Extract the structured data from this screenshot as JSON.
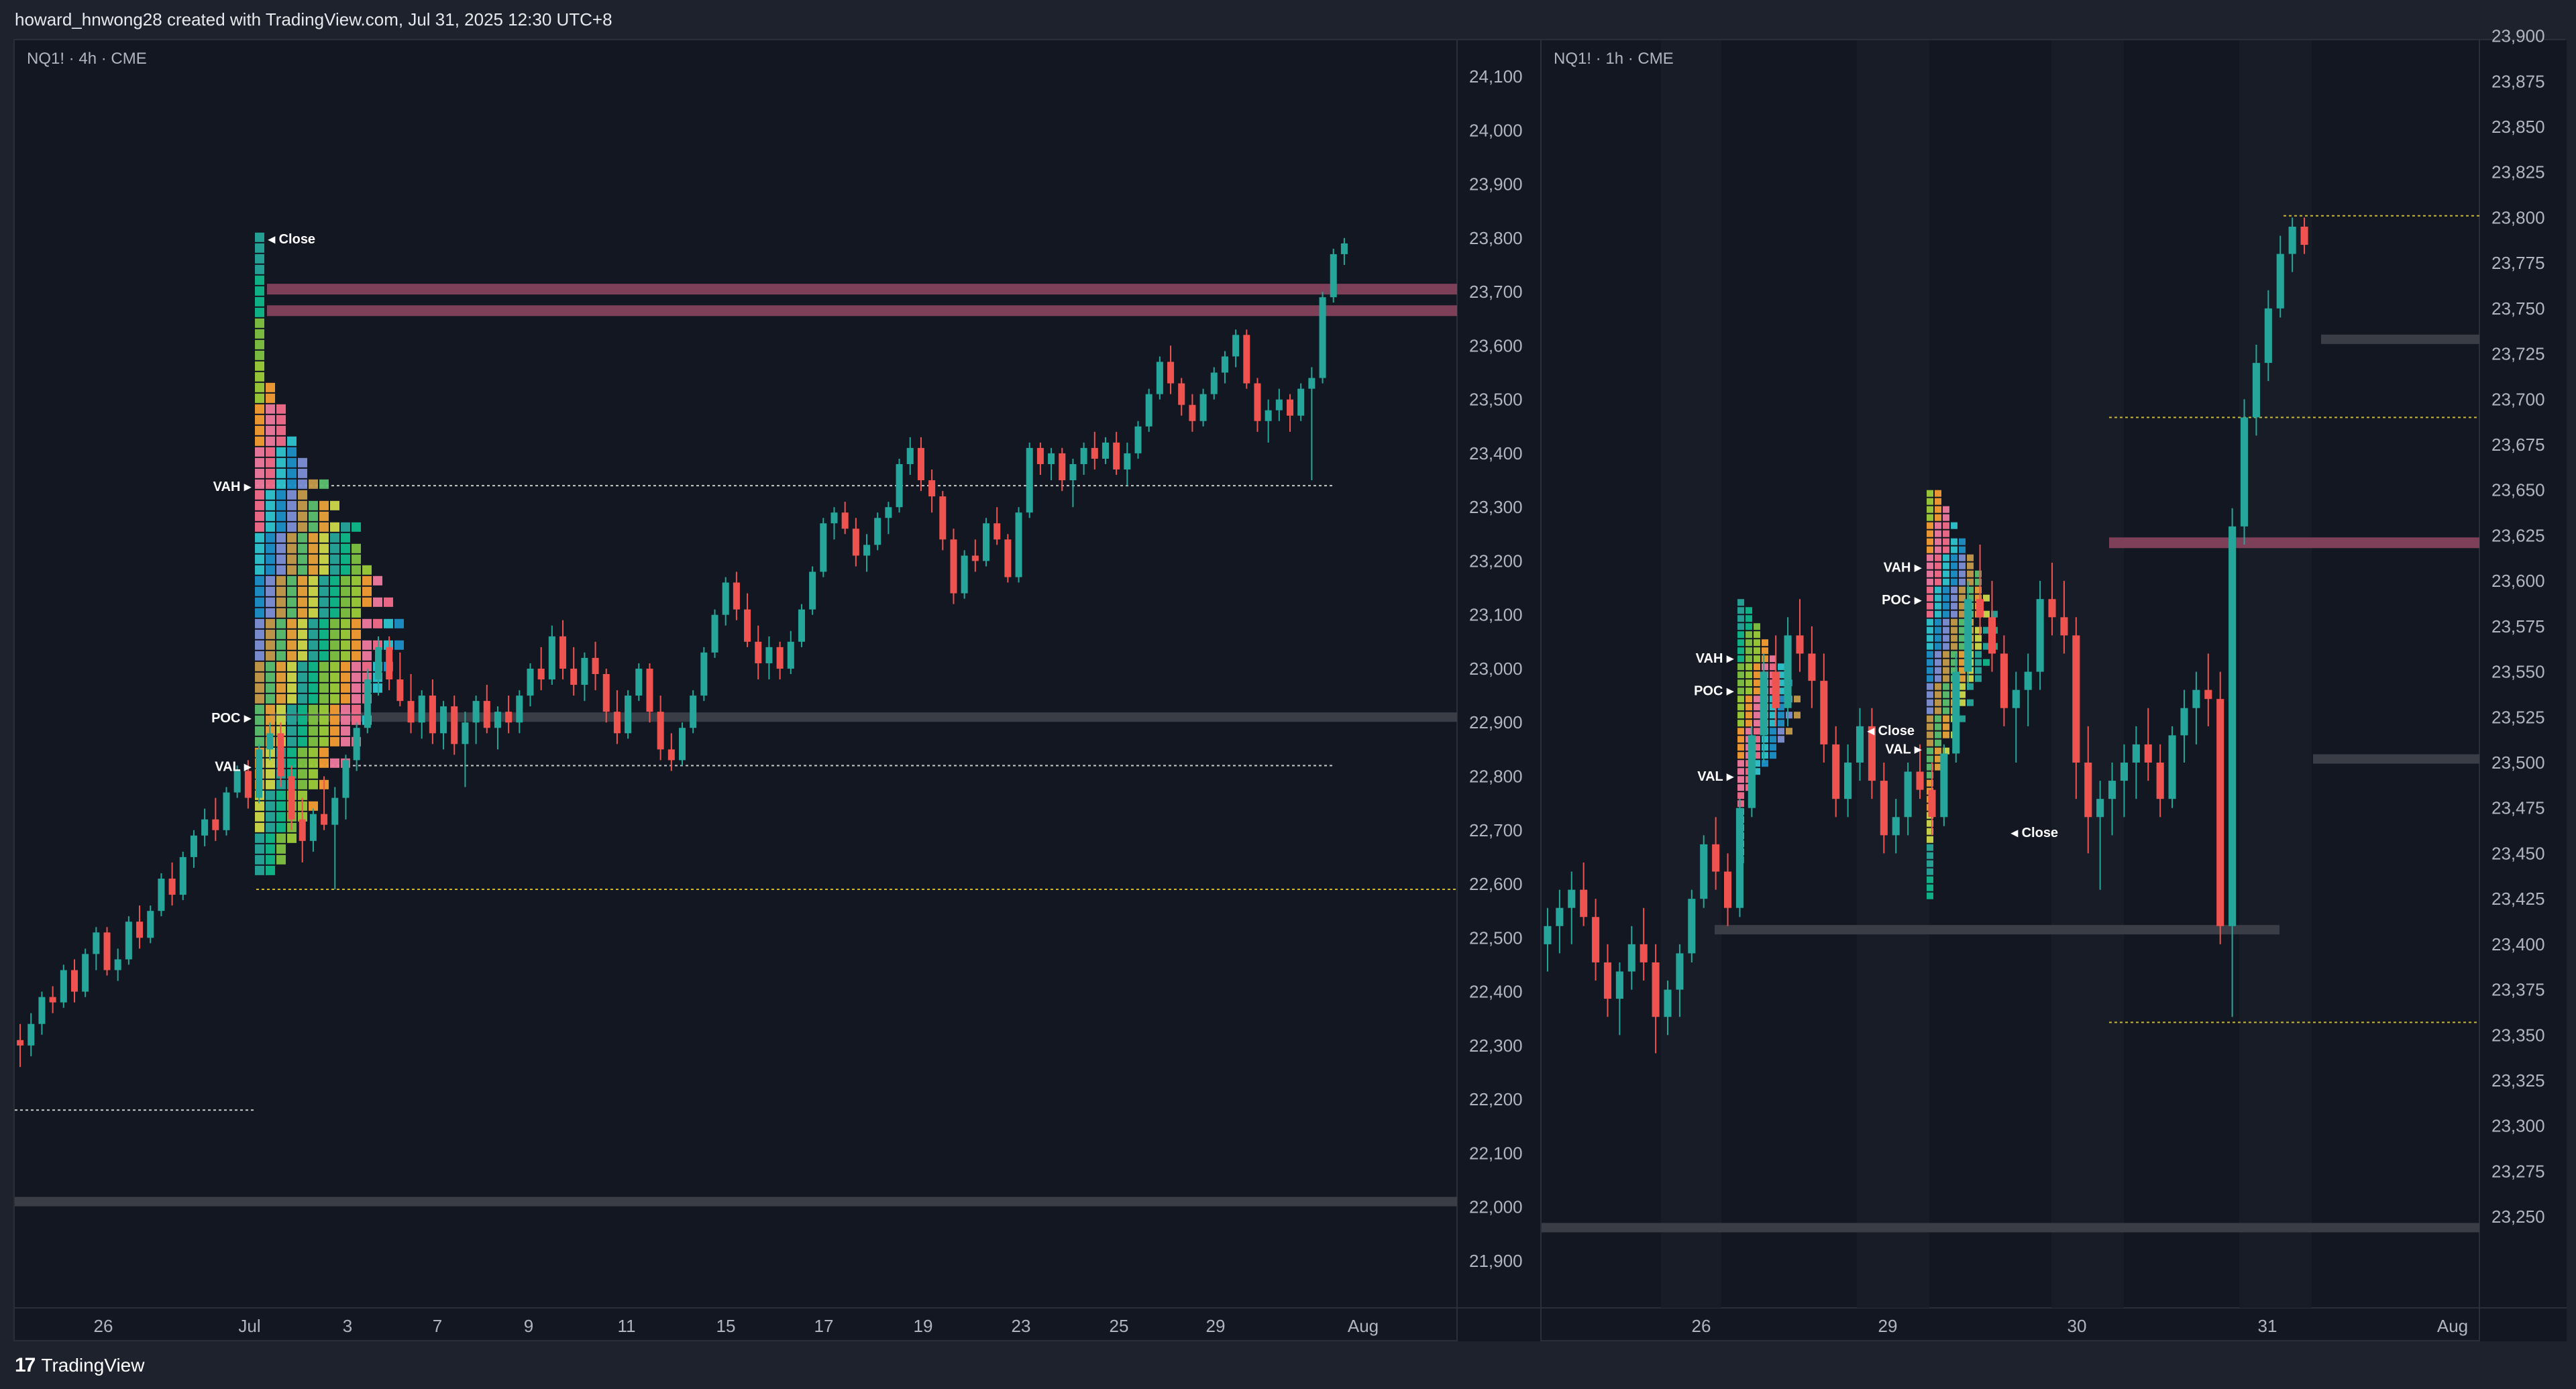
{
  "header": {
    "caption": "howard_hnwong28 created with TradingView.com, Jul 31, 2025 12:30 UTC+8"
  },
  "footer": {
    "brand": "TradingView",
    "brand_mark": "17"
  },
  "colors": {
    "background": "#131722",
    "up": "#26a69a",
    "down": "#ef5350",
    "level_band": "#7e3f58",
    "grey_band": "#3a3d45",
    "dotted": "#c9c9c9",
    "yellow_dotted": "#c8b53a"
  },
  "chart_data": [
    {
      "type": "candlestick",
      "symbol_label": "NQ1! · 4h · CME",
      "ylim": [
        21850,
        24130
      ],
      "y_ticks": [
        24100,
        24000,
        23900,
        23800,
        23700,
        23600,
        23500,
        23400,
        23300,
        23200,
        23100,
        23000,
        22900,
        22800,
        22700,
        22600,
        22500,
        22400,
        22300,
        22200,
        22100,
        22000,
        21900
      ],
      "x_tick_labels": [
        "26",
        "Jul",
        "3",
        "7",
        "9",
        "11",
        "15",
        "17",
        "19",
        "23",
        "25",
        "29",
        "Aug"
      ],
      "profile_labels": [
        "VAH",
        "POC",
        "VAL",
        "Close"
      ],
      "levels": {
        "vah": 23340,
        "poc": 22910,
        "val": 22820,
        "close_marker": 23800,
        "red_bands": [
          23705,
          23665
        ],
        "grey_bands": [
          22910,
          22010
        ],
        "dotted": [
          23340,
          22820,
          22180
        ],
        "yellow_dotted": [
          22590
        ]
      },
      "candles": [
        [
          22310,
          22340,
          22260,
          22300
        ],
        [
          22300,
          22360,
          22280,
          22340
        ],
        [
          22340,
          22400,
          22320,
          22390
        ],
        [
          22390,
          22410,
          22360,
          22380
        ],
        [
          22380,
          22450,
          22370,
          22440
        ],
        [
          22440,
          22460,
          22380,
          22400
        ],
        [
          22400,
          22480,
          22390,
          22470
        ],
        [
          22470,
          22520,
          22440,
          22510
        ],
        [
          22510,
          22520,
          22430,
          22440
        ],
        [
          22440,
          22480,
          22420,
          22460
        ],
        [
          22460,
          22540,
          22450,
          22530
        ],
        [
          22530,
          22560,
          22480,
          22500
        ],
        [
          22500,
          22560,
          22490,
          22550
        ],
        [
          22550,
          22620,
          22540,
          22610
        ],
        [
          22610,
          22640,
          22560,
          22580
        ],
        [
          22580,
          22660,
          22570,
          22650
        ],
        [
          22650,
          22700,
          22630,
          22690
        ],
        [
          22690,
          22740,
          22670,
          22720
        ],
        [
          22720,
          22760,
          22680,
          22700
        ],
        [
          22700,
          22780,
          22690,
          22770
        ],
        [
          22770,
          22820,
          22760,
          22810
        ],
        [
          22810,
          22830,
          22740,
          22760
        ],
        [
          22760,
          22860,
          22750,
          22850
        ],
        [
          22850,
          22900,
          22830,
          22880
        ],
        [
          22880,
          22900,
          22780,
          22800
        ],
        [
          22800,
          22820,
          22700,
          22720
        ],
        [
          22720,
          22760,
          22640,
          22680
        ],
        [
          22680,
          22740,
          22660,
          22730
        ],
        [
          22730,
          22800,
          22700,
          22710
        ],
        [
          22710,
          22780,
          22590,
          22760
        ],
        [
          22760,
          22840,
          22720,
          22830
        ],
        [
          22830,
          22900,
          22810,
          22890
        ],
        [
          22890,
          23000,
          22880,
          22980
        ],
        [
          22980,
          23060,
          22950,
          23040
        ],
        [
          23040,
          23060,
          22960,
          22980
        ],
        [
          22980,
          23030,
          22930,
          22940
        ],
        [
          22940,
          22990,
          22880,
          22900
        ],
        [
          22900,
          22960,
          22870,
          22950
        ],
        [
          22950,
          22980,
          22860,
          22880
        ],
        [
          22880,
          22940,
          22850,
          22930
        ],
        [
          22930,
          22950,
          22840,
          22860
        ],
        [
          22860,
          22920,
          22780,
          22900
        ],
        [
          22900,
          22950,
          22860,
          22940
        ],
        [
          22940,
          22970,
          22880,
          22890
        ],
        [
          22890,
          22930,
          22850,
          22920
        ],
        [
          22920,
          22950,
          22880,
          22900
        ],
        [
          22900,
          22960,
          22880,
          22950
        ],
        [
          22950,
          23010,
          22930,
          23000
        ],
        [
          23000,
          23040,
          22960,
          22980
        ],
        [
          22980,
          23080,
          22970,
          23060
        ],
        [
          23060,
          23090,
          22980,
          23000
        ],
        [
          23000,
          23040,
          22950,
          22970
        ],
        [
          22970,
          23030,
          22940,
          23020
        ],
        [
          23020,
          23050,
          22960,
          22990
        ],
        [
          22990,
          23000,
          22900,
          22920
        ],
        [
          22920,
          22960,
          22860,
          22880
        ],
        [
          22880,
          22960,
          22870,
          22950
        ],
        [
          22950,
          23010,
          22940,
          23000
        ],
        [
          23000,
          23010,
          22900,
          22920
        ],
        [
          22920,
          22950,
          22830,
          22850
        ],
        [
          22850,
          22880,
          22810,
          22830
        ],
        [
          22830,
          22900,
          22820,
          22890
        ],
        [
          22890,
          22960,
          22880,
          22950
        ],
        [
          22950,
          23040,
          22940,
          23030
        ],
        [
          23030,
          23110,
          23020,
          23100
        ],
        [
          23100,
          23170,
          23080,
          23160
        ],
        [
          23160,
          23180,
          23090,
          23110
        ],
        [
          23110,
          23140,
          23040,
          23050
        ],
        [
          23050,
          23080,
          22980,
          23010
        ],
        [
          23010,
          23060,
          22980,
          23040
        ],
        [
          23040,
          23050,
          22980,
          23000
        ],
        [
          23000,
          23070,
          22990,
          23050
        ],
        [
          23050,
          23120,
          23040,
          23110
        ],
        [
          23110,
          23190,
          23100,
          23180
        ],
        [
          23180,
          23280,
          23170,
          23270
        ],
        [
          23270,
          23300,
          23240,
          23290
        ],
        [
          23290,
          23310,
          23250,
          23260
        ],
        [
          23260,
          23280,
          23190,
          23210
        ],
        [
          23210,
          23250,
          23180,
          23230
        ],
        [
          23230,
          23290,
          23220,
          23280
        ],
        [
          23280,
          23310,
          23250,
          23300
        ],
        [
          23300,
          23390,
          23290,
          23380
        ],
        [
          23380,
          23430,
          23360,
          23410
        ],
        [
          23410,
          23430,
          23330,
          23350
        ],
        [
          23350,
          23370,
          23290,
          23320
        ],
        [
          23320,
          23330,
          23220,
          23240
        ],
        [
          23240,
          23260,
          23120,
          23140
        ],
        [
          23140,
          23220,
          23130,
          23210
        ],
        [
          23210,
          23240,
          23180,
          23200
        ],
        [
          23200,
          23280,
          23190,
          23270
        ],
        [
          23270,
          23300,
          23230,
          23240
        ],
        [
          23240,
          23250,
          23160,
          23170
        ],
        [
          23170,
          23300,
          23160,
          23290
        ],
        [
          23290,
          23420,
          23280,
          23410
        ],
        [
          23410,
          23420,
          23360,
          23380
        ],
        [
          23380,
          23410,
          23350,
          23400
        ],
        [
          23400,
          23410,
          23330,
          23350
        ],
        [
          23350,
          23390,
          23300,
          23380
        ],
        [
          23380,
          23420,
          23360,
          23410
        ],
        [
          23410,
          23440,
          23370,
          23390
        ],
        [
          23390,
          23430,
          23380,
          23420
        ],
        [
          23420,
          23440,
          23360,
          23370
        ],
        [
          23370,
          23420,
          23340,
          23400
        ],
        [
          23400,
          23460,
          23390,
          23450
        ],
        [
          23450,
          23520,
          23440,
          23510
        ],
        [
          23510,
          23580,
          23500,
          23570
        ],
        [
          23570,
          23600,
          23510,
          23530
        ],
        [
          23530,
          23540,
          23470,
          23490
        ],
        [
          23490,
          23510,
          23440,
          23460
        ],
        [
          23460,
          23520,
          23450,
          23510
        ],
        [
          23510,
          23560,
          23500,
          23550
        ],
        [
          23550,
          23590,
          23530,
          23580
        ],
        [
          23580,
          23630,
          23560,
          23620
        ],
        [
          23620,
          23630,
          23520,
          23530
        ],
        [
          23530,
          23540,
          23440,
          23460
        ],
        [
          23460,
          23500,
          23420,
          23480
        ],
        [
          23480,
          23520,
          23460,
          23500
        ],
        [
          23500,
          23510,
          23440,
          23470
        ],
        [
          23470,
          23530,
          23460,
          23520
        ],
        [
          23520,
          23560,
          23350,
          23540
        ],
        [
          23540,
          23700,
          23530,
          23690
        ],
        [
          23690,
          23780,
          23680,
          23770
        ],
        [
          23770,
          23800,
          23750,
          23790
        ]
      ]
    },
    {
      "type": "candlestick",
      "symbol_label": "NQ1! · 1h · CME",
      "ylim": [
        23222,
        23905
      ],
      "y_ticks": [
        23900,
        23875,
        23850,
        23825,
        23800,
        23775,
        23750,
        23725,
        23700,
        23675,
        23650,
        23625,
        23600,
        23575,
        23550,
        23525,
        23500,
        23475,
        23450,
        23425,
        23400,
        23375,
        23350,
        23325,
        23300,
        23275,
        23250
      ],
      "x_tick_labels": [
        "26",
        "29",
        "30",
        "31",
        "Aug"
      ],
      "profile_labels": [
        "VAH",
        "POC",
        "VAL",
        "Close"
      ],
      "levels": {
        "red_bands": [
          23621
        ],
        "grey_bands": [
          23733,
          23502,
          23408,
          23244
        ],
        "yellow_dotted": [
          23801,
          23690,
          23357
        ]
      },
      "candles": [
        [
          23400,
          23420,
          23385,
          23410
        ],
        [
          23410,
          23430,
          23395,
          23420
        ],
        [
          23420,
          23440,
          23400,
          23430
        ],
        [
          23430,
          23445,
          23410,
          23415
        ],
        [
          23415,
          23425,
          23380,
          23390
        ],
        [
          23390,
          23400,
          23360,
          23370
        ],
        [
          23370,
          23390,
          23350,
          23385
        ],
        [
          23385,
          23410,
          23375,
          23400
        ],
        [
          23400,
          23420,
          23380,
          23390
        ],
        [
          23390,
          23400,
          23340,
          23360
        ],
        [
          23360,
          23380,
          23350,
          23375
        ],
        [
          23375,
          23400,
          23360,
          23395
        ],
        [
          23395,
          23430,
          23390,
          23425
        ],
        [
          23425,
          23460,
          23420,
          23455
        ],
        [
          23455,
          23470,
          23430,
          23440
        ],
        [
          23440,
          23450,
          23410,
          23420
        ],
        [
          23420,
          23480,
          23415,
          23475
        ],
        [
          23475,
          23520,
          23470,
          23515
        ],
        [
          23515,
          23560,
          23500,
          23550
        ],
        [
          23550,
          23570,
          23520,
          23530
        ],
        [
          23530,
          23580,
          23520,
          23570
        ],
        [
          23570,
          23590,
          23550,
          23560
        ],
        [
          23560,
          23575,
          23530,
          23545
        ],
        [
          23545,
          23560,
          23500,
          23510
        ],
        [
          23510,
          23520,
          23470,
          23480
        ],
        [
          23480,
          23510,
          23470,
          23500
        ],
        [
          23500,
          23530,
          23490,
          23520
        ],
        [
          23520,
          23530,
          23480,
          23490
        ],
        [
          23490,
          23500,
          23450,
          23460
        ],
        [
          23460,
          23480,
          23450,
          23470
        ],
        [
          23470,
          23500,
          23460,
          23495
        ],
        [
          23495,
          23510,
          23480,
          23485
        ],
        [
          23485,
          23500,
          23460,
          23470
        ],
        [
          23470,
          23510,
          23465,
          23505
        ],
        [
          23505,
          23560,
          23500,
          23550
        ],
        [
          23550,
          23600,
          23540,
          23590
        ],
        [
          23590,
          23620,
          23570,
          23580
        ],
        [
          23580,
          23600,
          23550,
          23560
        ],
        [
          23560,
          23570,
          23520,
          23530
        ],
        [
          23530,
          23550,
          23500,
          23540
        ],
        [
          23540,
          23560,
          23520,
          23550
        ],
        [
          23550,
          23600,
          23540,
          23590
        ],
        [
          23590,
          23610,
          23570,
          23580
        ],
        [
          23580,
          23600,
          23560,
          23570
        ],
        [
          23570,
          23580,
          23480,
          23500
        ],
        [
          23500,
          23520,
          23450,
          23470
        ],
        [
          23470,
          23490,
          23430,
          23480
        ],
        [
          23480,
          23500,
          23460,
          23490
        ],
        [
          23490,
          23510,
          23470,
          23500
        ],
        [
          23500,
          23520,
          23480,
          23510
        ],
        [
          23510,
          23530,
          23490,
          23500
        ],
        [
          23500,
          23510,
          23470,
          23480
        ],
        [
          23480,
          23520,
          23475,
          23515
        ],
        [
          23515,
          23540,
          23500,
          23530
        ],
        [
          23530,
          23550,
          23510,
          23540
        ],
        [
          23540,
          23560,
          23520,
          23535
        ],
        [
          23535,
          23550,
          23400,
          23410
        ],
        [
          23410,
          23640,
          23360,
          23630
        ],
        [
          23630,
          23700,
          23620,
          23690
        ],
        [
          23690,
          23730,
          23680,
          23720
        ],
        [
          23720,
          23760,
          23710,
          23750
        ],
        [
          23750,
          23790,
          23745,
          23780
        ],
        [
          23780,
          23800,
          23770,
          23795
        ],
        [
          23795,
          23800,
          23780,
          23785
        ]
      ]
    }
  ]
}
